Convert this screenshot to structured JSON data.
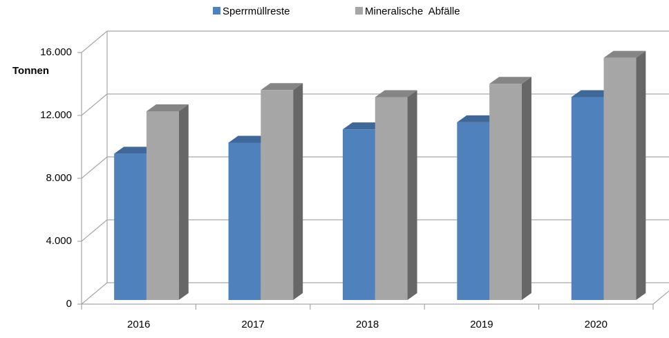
{
  "chart_data": {
    "type": "bar3d",
    "y_label": "Tonnen",
    "categories": [
      "2016",
      "2017",
      "2018",
      "2019",
      "2020"
    ],
    "series": [
      {
        "name": "Sperrmüllreste",
        "color": "#4f81bd",
        "values": [
          9300,
          10000,
          10850,
          11300,
          12900
        ]
      },
      {
        "name": "Mineralische  Abfälle",
        "color": "#a6a6a6",
        "values": [
          12000,
          13350,
          12900,
          13750,
          15400
        ]
      }
    ],
    "ylim": [
      0,
      16000
    ],
    "yticks": [
      0,
      {
        "value": 4000,
        "label": "4.000"
      },
      {
        "value": 8000,
        "label": "8.000"
      },
      {
        "value": 12000,
        "label": "12.000"
      },
      {
        "value": 16000,
        "label": "16.000"
      }
    ],
    "grid": true,
    "legend": "top"
  }
}
